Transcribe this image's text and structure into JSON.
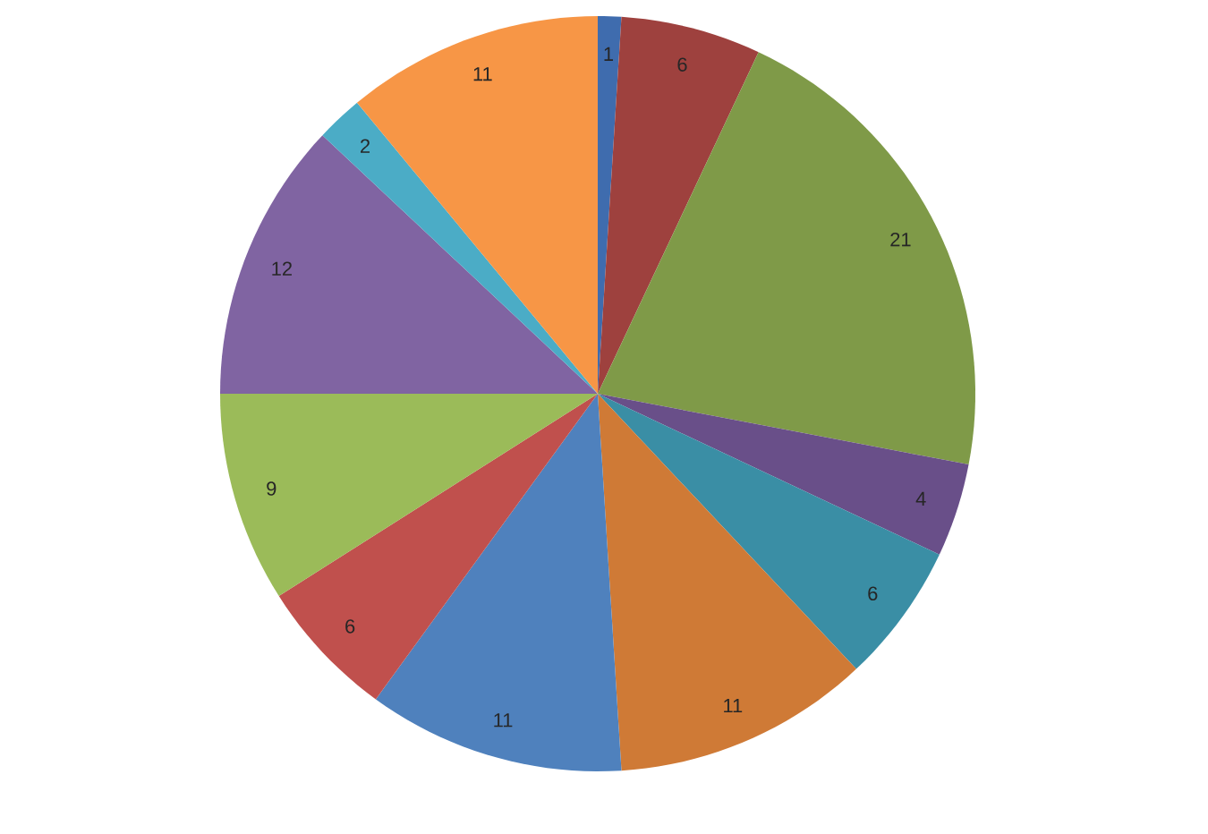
{
  "chart_data": {
    "type": "pie",
    "categories": [
      null,
      null,
      null,
      null,
      null,
      null,
      null,
      null,
      null,
      null,
      null,
      null
    ],
    "values": [
      1,
      6,
      21,
      4,
      6,
      11,
      11,
      6,
      9,
      12,
      2,
      11
    ],
    "colors": [
      "#3f6cae",
      "#9e413e",
      "#7f9a48",
      "#694f89",
      "#3a8ea5",
      "#cf7a36",
      "#4f81bd",
      "#c0504d",
      "#9bbb59",
      "#8064a2",
      "#4bacc6",
      "#f79646"
    ],
    "data_labels": true
  }
}
